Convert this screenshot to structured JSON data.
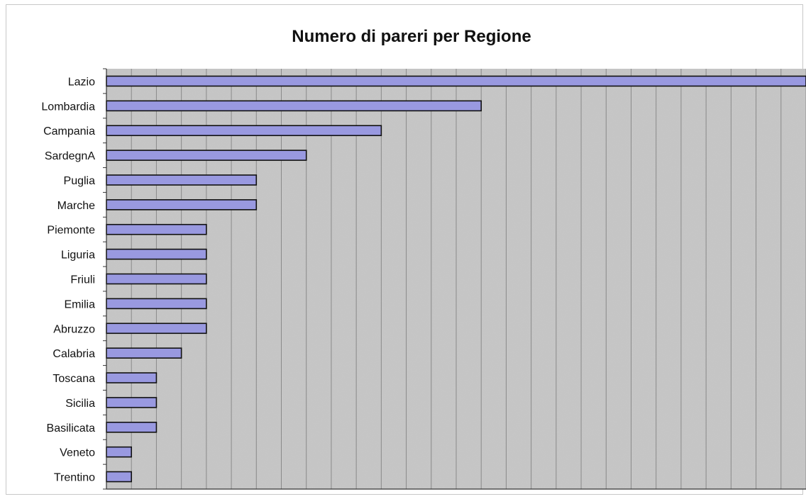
{
  "chart_data": {
    "type": "bar",
    "orientation": "horizontal",
    "title": "Numero di pareri per Regione",
    "categories": [
      "Lazio",
      "Lombardia",
      "Campania",
      "SardegnA",
      "Puglia",
      "Marche",
      "Piemonte",
      "Liguria",
      "Friuli",
      "Emilia",
      "Abruzzo",
      "Calabria",
      "Toscana",
      "Sicilia",
      "Basilicata",
      "Veneto",
      "Trentino"
    ],
    "values": [
      28,
      15,
      11,
      8,
      6,
      6,
      4,
      4,
      4,
      4,
      4,
      3,
      2,
      2,
      2,
      1,
      1
    ],
    "xlim": [
      0,
      28
    ],
    "grid": true,
    "colors": {
      "bar": "#9999e0",
      "bar_edge": "#111111",
      "plot_bg": "#c6c6c6",
      "grid": "#8a8a8a"
    }
  }
}
